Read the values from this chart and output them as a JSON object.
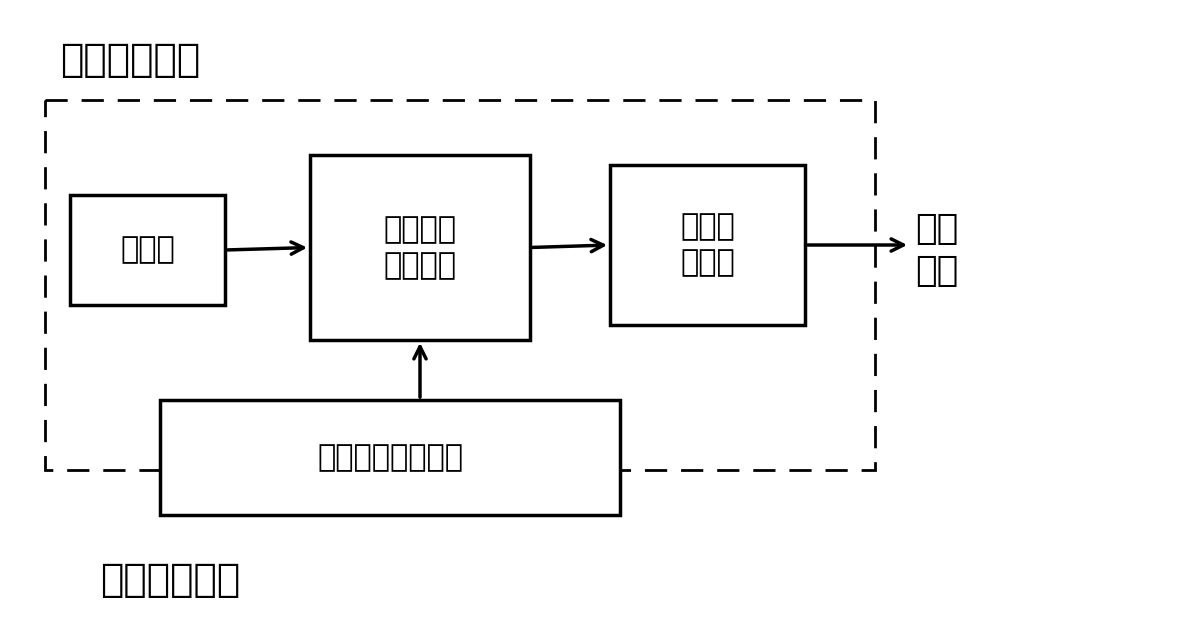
{
  "title_top": "电路调制模块",
  "title_bottom": "光路调制模块",
  "label_voltage": "电压源",
  "label_wideband": "宽带隙半\n导体器件",
  "label_radiation": "辐射输\n出组件",
  "label_microwave": "微波\n输出",
  "label_laser": "高能脉冲簇激光器",
  "bg_color": "#ffffff",
  "box_color": "#ffffff",
  "box_edge_color": "#000000",
  "dashed_box_color": "#000000",
  "text_color": "#000000",
  "fontsize_title": 28,
  "fontsize_label": 22,
  "fontsize_laser": 22,
  "fontsize_microwave": 26
}
